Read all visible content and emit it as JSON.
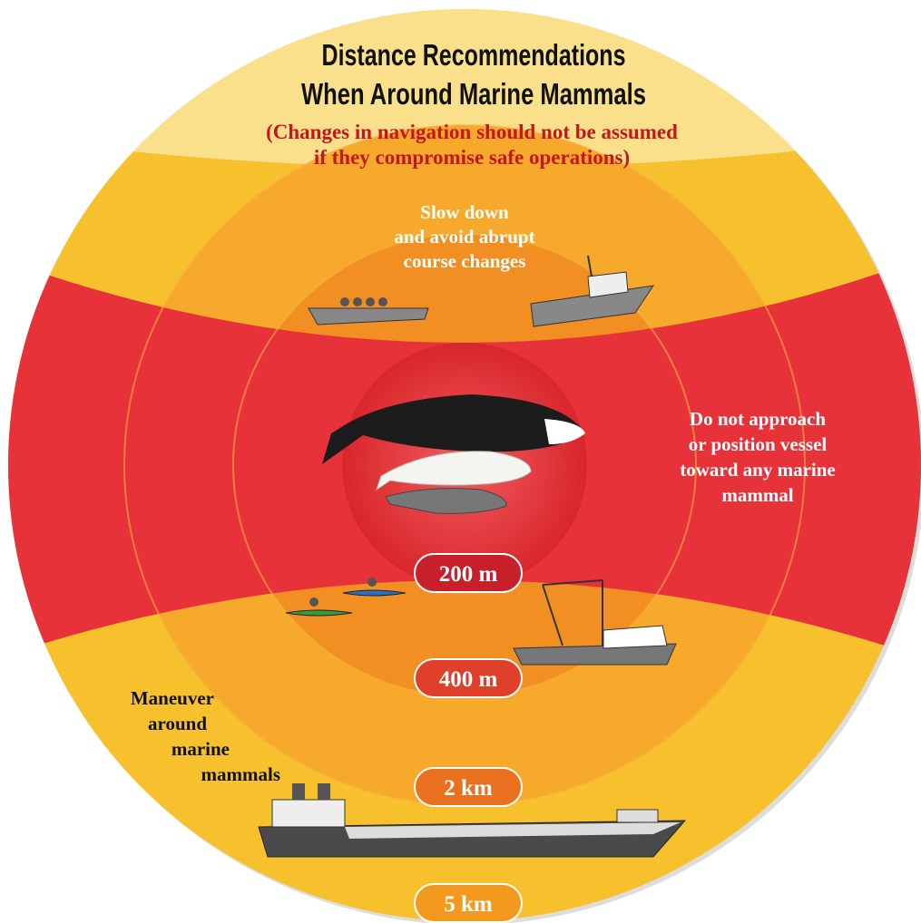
{
  "header": {
    "title": [
      "Distance Recommendations",
      "When Around Marine Mammals"
    ],
    "subtitle": [
      "(Changes in navigation should not be assumed",
      "if they compromise safe operations)"
    ]
  },
  "notes": {
    "slow_down": [
      "Slow down",
      "and avoid abrupt",
      "course changes"
    ],
    "do_not_approach": [
      "Do not approach",
      "or position vessel",
      "toward any marine",
      "mammal"
    ],
    "maneuver": [
      "Maneuver",
      "around",
      "marine",
      "mammals"
    ]
  },
  "zones": [
    {
      "label": "200 m"
    },
    {
      "label": "400 m"
    },
    {
      "label": "2 km"
    },
    {
      "label": "5 km"
    }
  ]
}
